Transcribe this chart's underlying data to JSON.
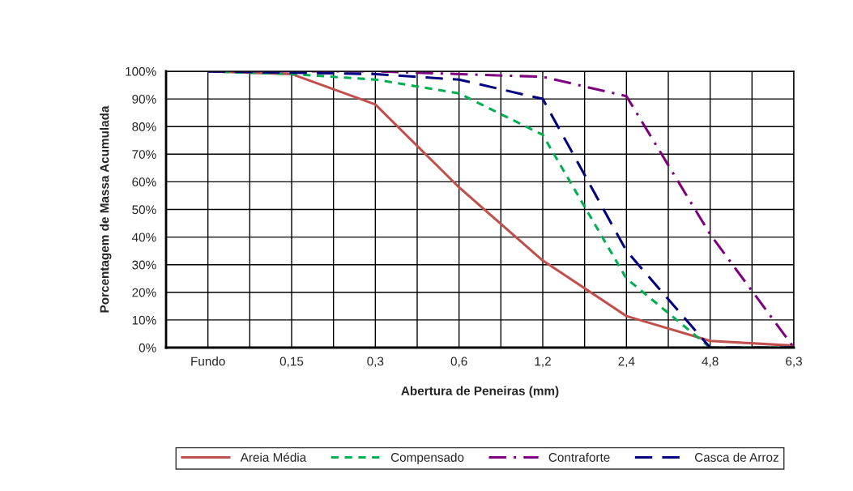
{
  "chart_data": {
    "type": "line",
    "xlabel": "Abertura de Peneiras (mm)",
    "ylabel": "Porcentagem de Massa Acumulada",
    "categories": [
      "Fundo",
      "0,15",
      "0,3",
      "0,6",
      "1,2",
      "2,4",
      "4,8",
      "6,3"
    ],
    "series": [
      {
        "name": "Areia Média",
        "color": "#c0504d",
        "line_style": "solid",
        "values": [
          100,
          99,
          88,
          58,
          31.5,
          11.4,
          2.4,
          0.7
        ]
      },
      {
        "name": "Compensado",
        "color": "#00b050",
        "line_style": "dashed",
        "values": [
          100,
          99,
          97,
          92,
          77,
          25,
          0,
          0
        ]
      },
      {
        "name": "Contraforte",
        "color": "#7f007f",
        "line_style": "dashdot",
        "values": [
          100,
          100,
          100,
          99,
          98,
          91,
          41,
          0
        ]
      },
      {
        "name": "Casca de Arroz",
        "color": "#000080",
        "line_style": "longdash",
        "values": [
          100,
          99.5,
          99,
          97,
          90,
          35,
          0,
          0
        ]
      }
    ],
    "ylim": [
      0,
      100
    ],
    "yticks": [
      {
        "value": 0,
        "label": "0%"
      },
      {
        "value": 10,
        "label": "10%"
      },
      {
        "value": 20,
        "label": "20%"
      },
      {
        "value": 30,
        "label": "30%"
      },
      {
        "value": 40,
        "label": "40%"
      },
      {
        "value": 50,
        "label": "50%"
      },
      {
        "value": 60,
        "label": "60%"
      },
      {
        "value": 70,
        "label": "70%"
      },
      {
        "value": 80,
        "label": "80%"
      },
      {
        "value": 90,
        "label": "90%"
      },
      {
        "value": 100,
        "label": "100%"
      }
    ],
    "grid": true,
    "legend": "bottom",
    "marker": "none"
  }
}
